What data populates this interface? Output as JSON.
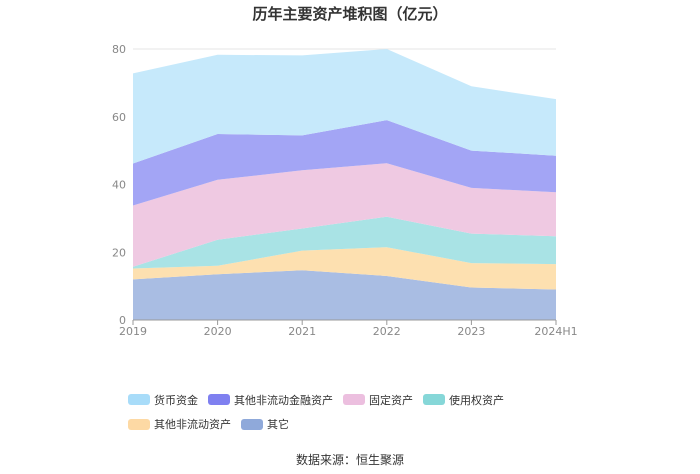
{
  "title": "历年主要资产堆积图（亿元）",
  "source": "数据来源：恒生聚源",
  "chart_data": {
    "type": "area",
    "stacked": true,
    "title": "历年主要资产堆积图（亿元）",
    "categories": [
      "2019",
      "2020",
      "2021",
      "2022",
      "2023",
      "2024H1"
    ],
    "ylim": [
      0,
      80
    ],
    "yticks": [
      0,
      20,
      40,
      60,
      80
    ],
    "grid": true,
    "legend_position": "bottom",
    "series": [
      {
        "name": "其它",
        "color": "#a9bde3",
        "values": [
          12.0,
          13.5,
          14.7,
          13.0,
          9.6,
          9.0
        ]
      },
      {
        "name": "其他非流动资产",
        "color": "#fde0b0",
        "values": [
          3.2,
          2.5,
          5.8,
          8.5,
          7.2,
          7.5
        ]
      },
      {
        "name": "使用权资产",
        "color": "#a9e3e5",
        "values": [
          0.5,
          7.7,
          6.5,
          9.0,
          8.7,
          8.2
        ]
      },
      {
        "name": "固定资产",
        "color": "#efc9e2",
        "values": [
          18.1,
          17.7,
          17.2,
          15.8,
          13.5,
          13.0
        ]
      },
      {
        "name": "其他非流动金融资产",
        "color": "#a3a5f5",
        "values": [
          12.4,
          13.5,
          10.3,
          12.7,
          11.0,
          10.8
        ]
      },
      {
        "name": "货币资金",
        "color": "#c6e9fb",
        "values": [
          26.6,
          23.4,
          23.6,
          21.0,
          19.0,
          16.7
        ]
      }
    ],
    "legend": [
      {
        "name": "货币资金",
        "color": "#a8dcf9"
      },
      {
        "name": "其他非流动金融资产",
        "color": "#7f80f0"
      },
      {
        "name": "固定资产",
        "color": "#ecbfdf"
      },
      {
        "name": "使用权资产",
        "color": "#86d7d8"
      },
      {
        "name": "其他非流动资产",
        "color": "#fdd9a4"
      },
      {
        "name": "其它",
        "color": "#8fa9da"
      }
    ]
  }
}
